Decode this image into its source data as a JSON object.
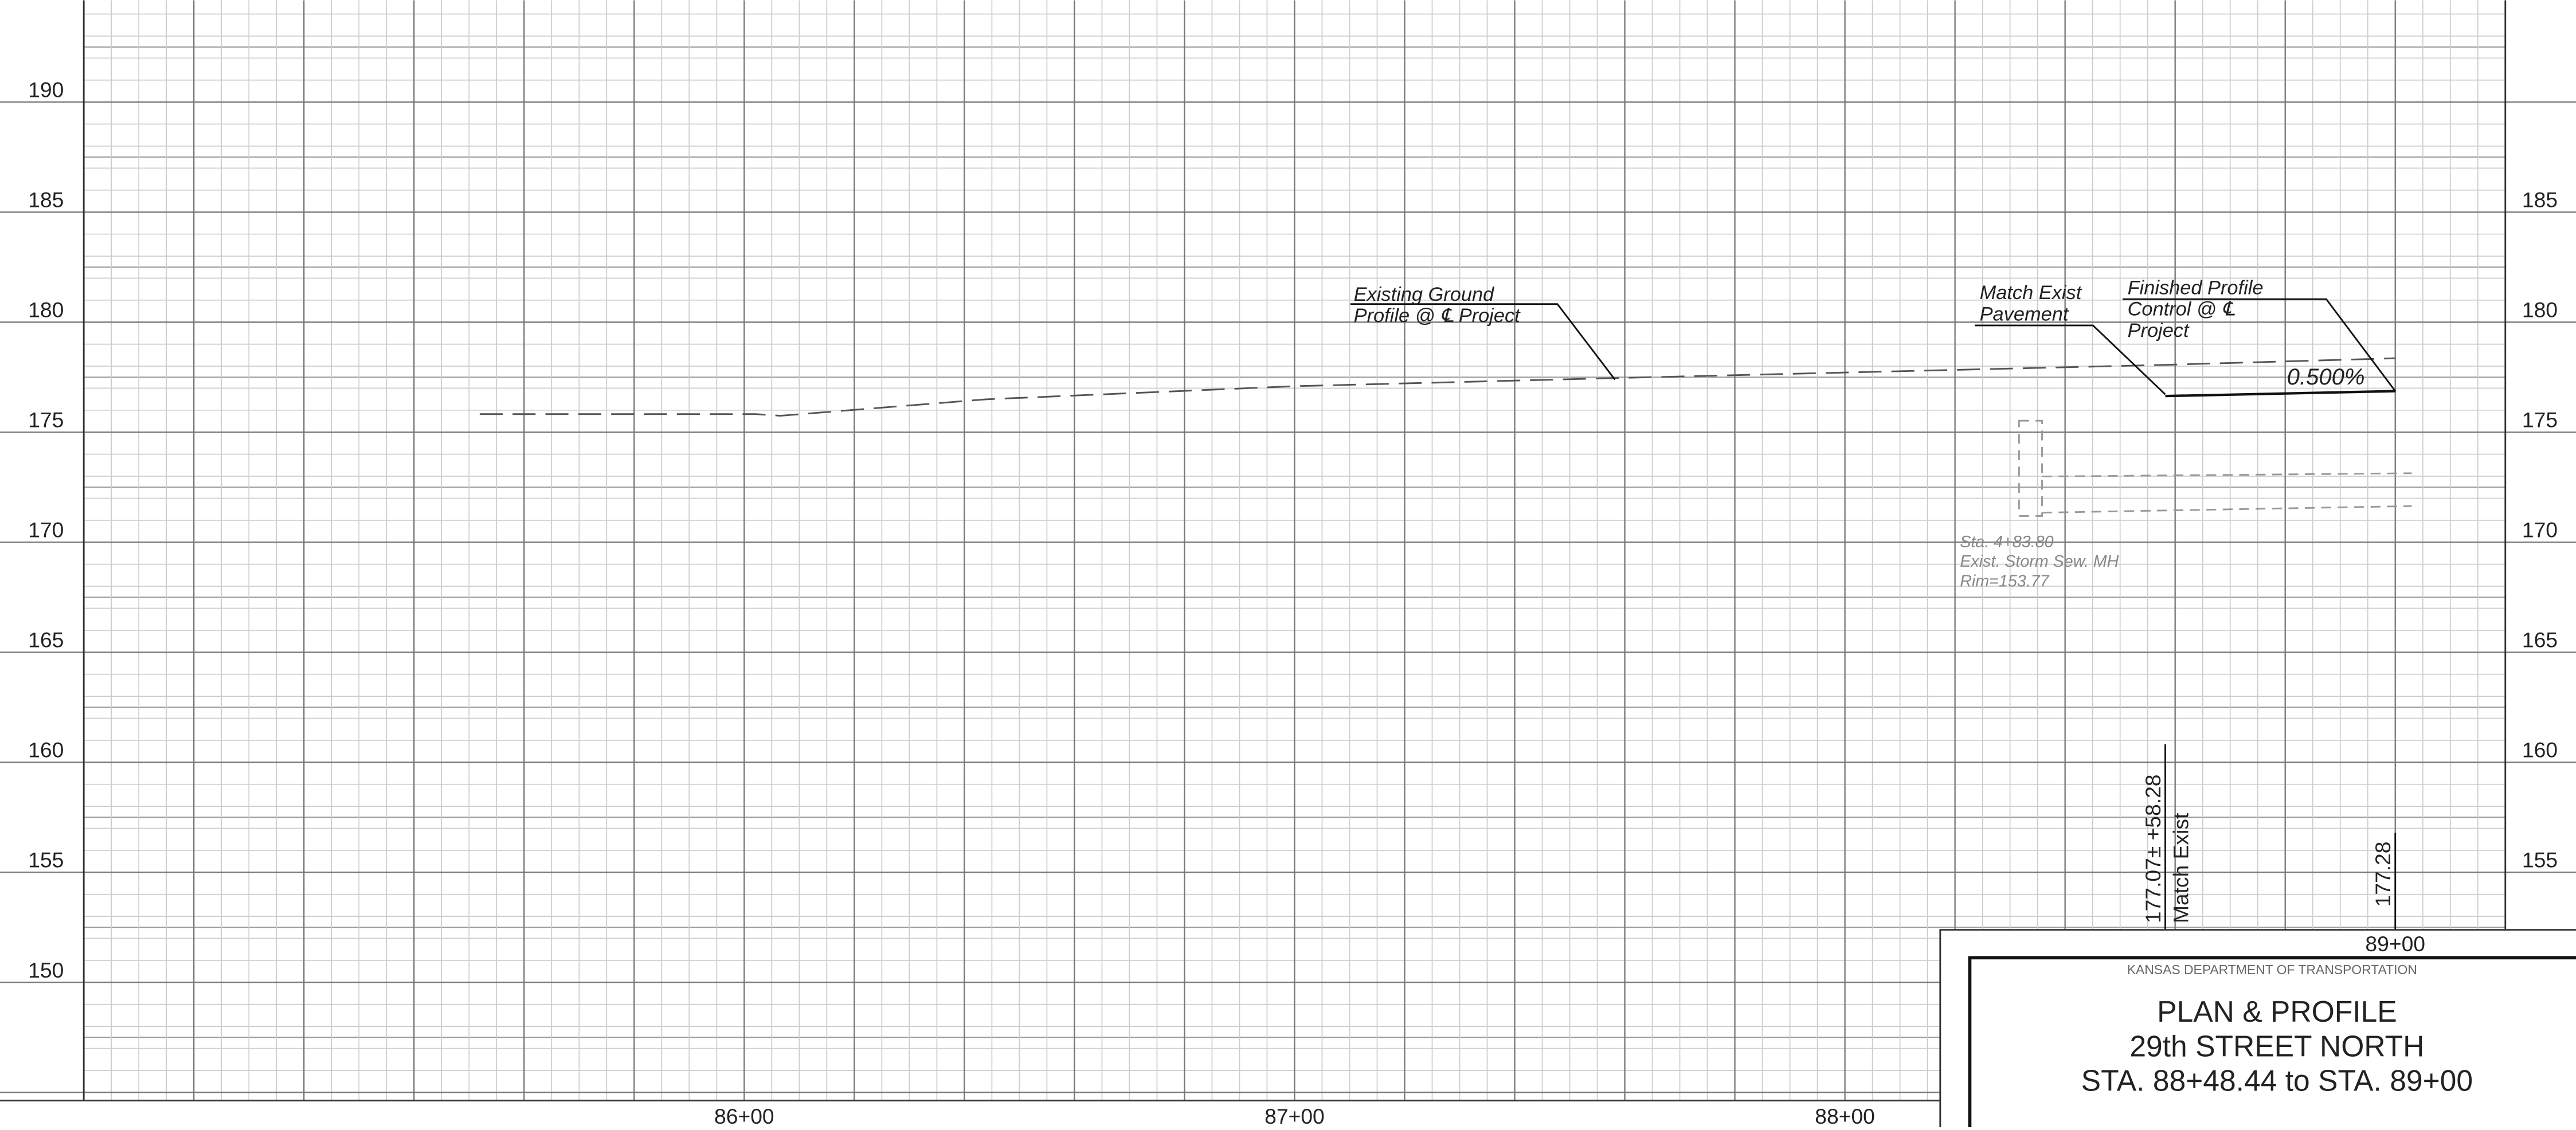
{
  "axis": {
    "left_ticks": [
      "190",
      "185",
      "180",
      "175",
      "170",
      "165",
      "160",
      "155",
      "150"
    ],
    "right_ticks": [
      "185",
      "180",
      "175",
      "170",
      "165",
      "160",
      "155"
    ],
    "stations": [
      "86+00",
      "87+00",
      "88+00"
    ],
    "end_station": "89+00"
  },
  "annotations": {
    "existing_ground": [
      "Existing Ground",
      "Profile @ ℄ Project"
    ],
    "match_exist": [
      "Match Exist",
      "Pavement"
    ],
    "finished_profile": [
      "Finished Profile",
      "Control @ ℄",
      "Project"
    ],
    "grade": "0.500%",
    "manhole": [
      "Sta. 4+83.80",
      "Exist. Storm Sew. MH",
      "Rim=153.77"
    ],
    "match_station": [
      "177.07±  +58.28",
      "Match Exist"
    ],
    "end_elevation": "177.28"
  },
  "title_block": {
    "agency": "KANSAS DEPARTMENT OF TRANSPORTATION",
    "lines": [
      "PLAN & PROFILE",
      "29th STREET NORTH",
      "STA. 88+48.44 to STA. 89+00"
    ]
  }
}
